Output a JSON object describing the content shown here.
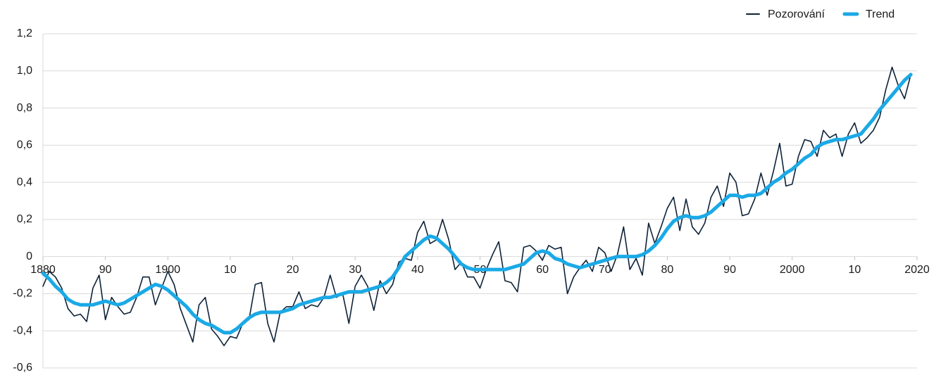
{
  "chart_data": {
    "type": "line",
    "x": [
      1880,
      1881,
      1882,
      1883,
      1884,
      1885,
      1886,
      1887,
      1888,
      1889,
      1890,
      1891,
      1892,
      1893,
      1894,
      1895,
      1896,
      1897,
      1898,
      1899,
      1900,
      1901,
      1902,
      1903,
      1904,
      1905,
      1906,
      1907,
      1908,
      1909,
      1910,
      1911,
      1912,
      1913,
      1914,
      1915,
      1916,
      1917,
      1918,
      1919,
      1920,
      1921,
      1922,
      1923,
      1924,
      1925,
      1926,
      1927,
      1928,
      1929,
      1930,
      1931,
      1932,
      1933,
      1934,
      1935,
      1936,
      1937,
      1938,
      1939,
      1940,
      1941,
      1942,
      1943,
      1944,
      1945,
      1946,
      1947,
      1948,
      1949,
      1950,
      1951,
      1952,
      1953,
      1954,
      1955,
      1956,
      1957,
      1958,
      1959,
      1960,
      1961,
      1962,
      1963,
      1964,
      1965,
      1966,
      1967,
      1968,
      1969,
      1970,
      1971,
      1972,
      1973,
      1974,
      1975,
      1976,
      1977,
      1978,
      1979,
      1980,
      1981,
      1982,
      1983,
      1984,
      1985,
      1986,
      1987,
      1988,
      1989,
      1990,
      1991,
      1992,
      1993,
      1994,
      1995,
      1996,
      1997,
      1998,
      1999,
      2000,
      2001,
      2002,
      2003,
      2004,
      2005,
      2006,
      2007,
      2008,
      2009,
      2010,
      2011,
      2012,
      2013,
      2014,
      2015,
      2016,
      2017,
      2018,
      2019
    ],
    "series": [
      {
        "name": "Pozorování",
        "color": "#0d2238",
        "values": [
          -0.16,
          -0.08,
          -0.11,
          -0.17,
          -0.28,
          -0.32,
          -0.31,
          -0.35,
          -0.17,
          -0.1,
          -0.34,
          -0.22,
          -0.27,
          -0.31,
          -0.3,
          -0.22,
          -0.11,
          -0.11,
          -0.26,
          -0.17,
          -0.08,
          -0.15,
          -0.28,
          -0.37,
          -0.46,
          -0.26,
          -0.22,
          -0.39,
          -0.43,
          -0.48,
          -0.43,
          -0.44,
          -0.36,
          -0.34,
          -0.15,
          -0.14,
          -0.36,
          -0.46,
          -0.3,
          -0.27,
          -0.27,
          -0.19,
          -0.28,
          -0.26,
          -0.27,
          -0.22,
          -0.1,
          -0.22,
          -0.2,
          -0.36,
          -0.16,
          -0.1,
          -0.16,
          -0.29,
          -0.13,
          -0.2,
          -0.15,
          -0.03,
          -0.01,
          -0.02,
          0.13,
          0.19,
          0.07,
          0.09,
          0.2,
          0.09,
          -0.07,
          -0.03,
          -0.11,
          -0.11,
          -0.17,
          -0.07,
          0.01,
          0.08,
          -0.13,
          -0.14,
          -0.19,
          0.05,
          0.06,
          0.03,
          -0.02,
          0.06,
          0.04,
          0.05,
          -0.2,
          -0.11,
          -0.06,
          -0.02,
          -0.08,
          0.05,
          0.02,
          -0.08,
          0.01,
          0.16,
          -0.07,
          -0.01,
          -0.1,
          0.18,
          0.07,
          0.16,
          0.26,
          0.32,
          0.14,
          0.31,
          0.16,
          0.12,
          0.18,
          0.32,
          0.38,
          0.27,
          0.45,
          0.4,
          0.22,
          0.23,
          0.31,
          0.45,
          0.33,
          0.46,
          0.61,
          0.38,
          0.39,
          0.54,
          0.63,
          0.62,
          0.54,
          0.68,
          0.64,
          0.66,
          0.54,
          0.66,
          0.72,
          0.61,
          0.64,
          0.68,
          0.75,
          0.9,
          1.02,
          0.92,
          0.85,
          0.98
        ]
      },
      {
        "name": "Trend",
        "color": "#1ba9e6",
        "values": [
          -0.09,
          -0.12,
          -0.16,
          -0.19,
          -0.23,
          -0.25,
          -0.26,
          -0.26,
          -0.26,
          -0.25,
          -0.24,
          -0.25,
          -0.26,
          -0.25,
          -0.23,
          -0.21,
          -0.19,
          -0.17,
          -0.15,
          -0.16,
          -0.18,
          -0.21,
          -0.24,
          -0.27,
          -0.31,
          -0.34,
          -0.36,
          -0.37,
          -0.39,
          -0.41,
          -0.41,
          -0.39,
          -0.36,
          -0.33,
          -0.31,
          -0.3,
          -0.3,
          -0.3,
          -0.3,
          -0.29,
          -0.28,
          -0.26,
          -0.25,
          -0.24,
          -0.23,
          -0.22,
          -0.22,
          -0.21,
          -0.2,
          -0.19,
          -0.19,
          -0.19,
          -0.18,
          -0.17,
          -0.16,
          -0.14,
          -0.11,
          -0.06,
          0.0,
          0.03,
          0.06,
          0.09,
          0.11,
          0.1,
          0.07,
          0.04,
          0.0,
          -0.04,
          -0.06,
          -0.07,
          -0.07,
          -0.07,
          -0.07,
          -0.07,
          -0.07,
          -0.06,
          -0.05,
          -0.04,
          -0.01,
          0.02,
          0.03,
          0.02,
          -0.01,
          -0.02,
          -0.04,
          -0.05,
          -0.06,
          -0.05,
          -0.04,
          -0.03,
          -0.02,
          -0.01,
          0.0,
          0.0,
          0.0,
          0.0,
          0.01,
          0.03,
          0.06,
          0.1,
          0.15,
          0.19,
          0.21,
          0.22,
          0.21,
          0.21,
          0.22,
          0.24,
          0.27,
          0.3,
          0.33,
          0.33,
          0.32,
          0.33,
          0.33,
          0.34,
          0.37,
          0.4,
          0.42,
          0.45,
          0.47,
          0.5,
          0.53,
          0.55,
          0.59,
          0.61,
          0.62,
          0.63,
          0.63,
          0.64,
          0.65,
          0.66,
          0.7,
          0.74,
          0.79,
          0.83,
          0.87,
          0.91,
          0.95,
          0.98
        ]
      }
    ],
    "xlim": [
      1880,
      2020
    ],
    "xticks": [
      {
        "value": 1880,
        "label": "1880"
      },
      {
        "value": 1890,
        "label": "90"
      },
      {
        "value": 1900,
        "label": "1900"
      },
      {
        "value": 1910,
        "label": "10"
      },
      {
        "value": 1920,
        "label": "20"
      },
      {
        "value": 1930,
        "label": "30"
      },
      {
        "value": 1940,
        "label": "40"
      },
      {
        "value": 1950,
        "label": "50"
      },
      {
        "value": 1960,
        "label": "60"
      },
      {
        "value": 1970,
        "label": "70"
      },
      {
        "value": 1980,
        "label": "80"
      },
      {
        "value": 1990,
        "label": "90"
      },
      {
        "value": 2000,
        "label": "2000"
      },
      {
        "value": 2010,
        "label": "10"
      },
      {
        "value": 2020,
        "label": "2020"
      }
    ],
    "ylim": [
      -0.6,
      1.2
    ],
    "yticks": [
      {
        "value": -0.6,
        "label": "-0,6"
      },
      {
        "value": -0.4,
        "label": "-0,4"
      },
      {
        "value": -0.2,
        "label": "-0,2"
      },
      0,
      {
        "value": 0.2,
        "label": "0,2"
      },
      {
        "value": 0.4,
        "label": "0,4"
      },
      {
        "value": 0.6,
        "label": "0,6"
      },
      {
        "value": 0.8,
        "label": "0,8"
      },
      {
        "value": 1.0,
        "label": "1,0"
      },
      {
        "value": 1.2,
        "label": "1,2"
      }
    ],
    "grid": true,
    "legend": "top-right"
  }
}
